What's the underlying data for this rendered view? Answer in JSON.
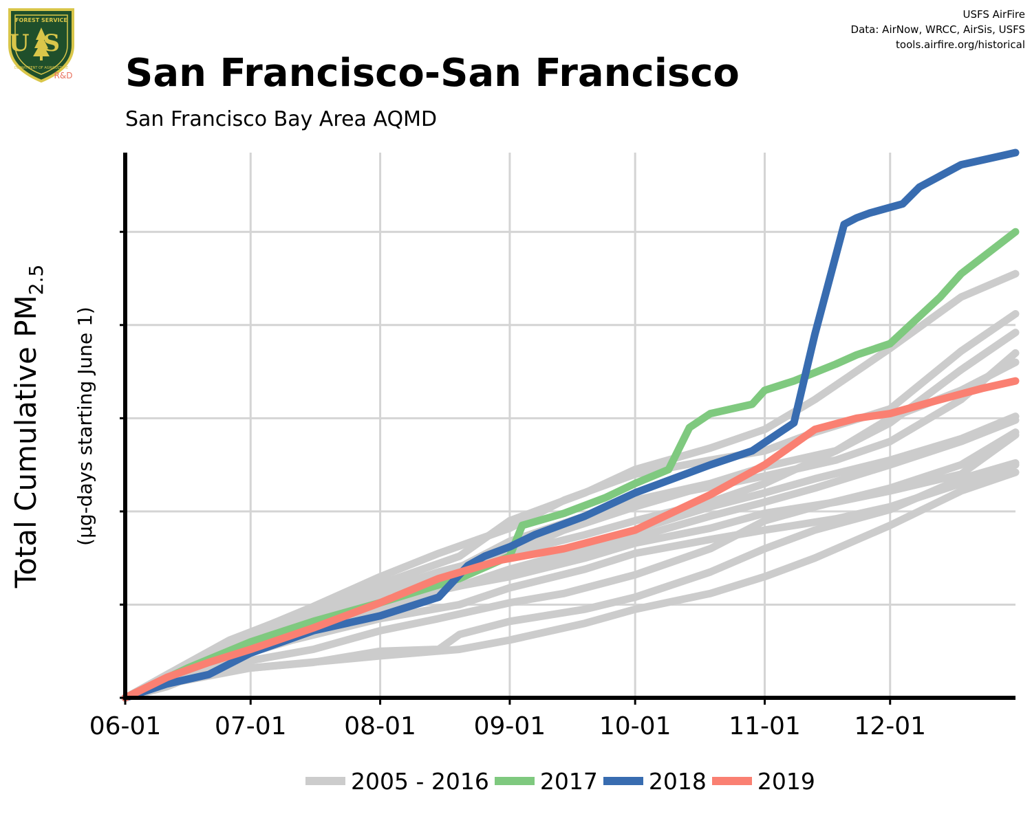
{
  "header": {
    "title": "San Francisco-San Francisco",
    "subtitle": "San Francisco Bay Area AQMD",
    "credits": [
      "USFS AirFire",
      "Data: AirNow, WRCC, AirSis, USFS",
      "tools.airfire.org/historical"
    ]
  },
  "logo": {
    "top_text": "FOREST SERVICE",
    "letters": "US",
    "bottom_text": "DEPARTMENT OF AGRICULTURE",
    "badge": "R&D",
    "colors": {
      "shield": "#1f4f2b",
      "trim": "#d9c64a",
      "badge": "#e8735f"
    }
  },
  "chart_data": {
    "type": "line",
    "ylabel_main": "Total Cumulative PM",
    "ylabel_sub": "2.5",
    "ylabel_units": "(µg-days starting June 1)",
    "x_ticks": [
      "06-01",
      "07-01",
      "08-01",
      "09-01",
      "10-01",
      "11-01",
      "12-01"
    ],
    "x_tick_days": [
      0,
      30,
      61,
      92,
      122,
      153,
      183
    ],
    "xlim": [
      0,
      213
    ],
    "ylim": [
      0,
      5.85
    ],
    "y_ticks": [
      0,
      1,
      2,
      3,
      4,
      5
    ],
    "y_tick_labels": [
      "",
      "",
      "",
      "",
      "",
      ""
    ],
    "grid": true,
    "legend_position": "bottom",
    "legend": [
      {
        "label": "2005 - 2016",
        "color": "#cccccc"
      },
      {
        "label": "2017",
        "color": "#7fc97f"
      },
      {
        "label": "2018",
        "color": "#386cb0"
      },
      {
        "label": "2019",
        "color": "#fa8072"
      }
    ],
    "series": [
      {
        "name": "2005 - 2016",
        "color": "#cccccc",
        "x": [
          0,
          10,
          25,
          40,
          61,
          80,
          92,
          110,
          122,
          140,
          153,
          165,
          183,
          200,
          213
        ],
        "y": [
          0,
          0.25,
          0.62,
          0.88,
          1.22,
          1.52,
          1.9,
          2.2,
          2.45,
          2.68,
          2.88,
          3.2,
          3.75,
          4.3,
          4.55
        ]
      },
      {
        "name": "2005 - 2016",
        "color": "#cccccc",
        "x": [
          0,
          15,
          30,
          45,
          61,
          75,
          92,
          105,
          122,
          140,
          153,
          165,
          183,
          200,
          213
        ],
        "y": [
          0,
          0.3,
          0.7,
          0.98,
          1.3,
          1.55,
          1.82,
          2.12,
          2.4,
          2.55,
          2.65,
          2.85,
          3.1,
          3.72,
          4.12
        ]
      },
      {
        "name": "2005 - 2016",
        "color": "#cccccc",
        "x": [
          0,
          10,
          25,
          40,
          61,
          80,
          92,
          110,
          122,
          140,
          153,
          170,
          183,
          200,
          213
        ],
        "y": [
          0,
          0.2,
          0.52,
          0.82,
          1.12,
          1.4,
          1.68,
          1.95,
          2.12,
          2.3,
          2.48,
          2.65,
          2.95,
          3.52,
          3.92
        ]
      },
      {
        "name": "2005 - 2016",
        "color": "#cccccc",
        "x": [
          0,
          15,
          30,
          50,
          61,
          75,
          92,
          105,
          122,
          135,
          153,
          170,
          183,
          200,
          213
        ],
        "y": [
          0,
          0.32,
          0.66,
          0.95,
          1.15,
          1.35,
          1.55,
          1.8,
          2.05,
          2.22,
          2.38,
          2.55,
          2.75,
          3.2,
          3.7
        ]
      },
      {
        "name": "2005 - 2016",
        "color": "#cccccc",
        "x": [
          0,
          10,
          25,
          40,
          61,
          75,
          92,
          110,
          122,
          140,
          153,
          170,
          183,
          200,
          213
        ],
        "y": [
          0,
          0.22,
          0.58,
          0.85,
          1.12,
          1.32,
          1.55,
          1.75,
          1.9,
          2.1,
          2.3,
          2.65,
          3.0,
          3.3,
          3.6
        ]
      },
      {
        "name": "2005 - 2016",
        "color": "#cccccc",
        "x": [
          0,
          15,
          30,
          45,
          61,
          80,
          92,
          110,
          122,
          140,
          153,
          165,
          183,
          200,
          213
        ],
        "y": [
          0,
          0.26,
          0.62,
          0.86,
          1.05,
          1.2,
          1.38,
          1.6,
          1.8,
          2.05,
          2.2,
          2.35,
          2.55,
          2.78,
          3.02
        ]
      },
      {
        "name": "2005 - 2016",
        "color": "#cccccc",
        "x": [
          0,
          10,
          25,
          40,
          61,
          75,
          92,
          105,
          122,
          140,
          153,
          165,
          183,
          200,
          213
        ],
        "y": [
          0,
          0.18,
          0.45,
          0.72,
          0.95,
          1.15,
          1.32,
          1.52,
          1.72,
          1.95,
          2.1,
          2.25,
          2.5,
          2.75,
          2.98
        ]
      },
      {
        "name": "2005 - 2016",
        "color": "#cccccc",
        "x": [
          0,
          15,
          30,
          45,
          61,
          75,
          92,
          110,
          122,
          140,
          153,
          170,
          183,
          200,
          213
        ],
        "y": [
          0,
          0.3,
          0.62,
          0.85,
          1.02,
          1.16,
          1.3,
          1.5,
          1.66,
          1.82,
          1.98,
          2.1,
          2.22,
          2.4,
          2.82
        ]
      },
      {
        "name": "2005 - 2016",
        "color": "#cccccc",
        "x": [
          0,
          10,
          25,
          40,
          61,
          80,
          92,
          110,
          122,
          140,
          153,
          170,
          183,
          200,
          213
        ],
        "y": [
          0,
          0.18,
          0.42,
          0.62,
          0.85,
          1.0,
          1.18,
          1.38,
          1.55,
          1.7,
          1.8,
          1.92,
          2.05,
          2.3,
          2.5
        ]
      },
      {
        "name": "2005 - 2016",
        "color": "#cccccc",
        "x": [
          0,
          15,
          30,
          45,
          61,
          75,
          92,
          105,
          122,
          140,
          153,
          165,
          183,
          200,
          213
        ],
        "y": [
          0,
          0.24,
          0.4,
          0.52,
          0.72,
          0.85,
          1.02,
          1.12,
          1.32,
          1.6,
          1.9,
          2.05,
          2.25,
          2.5,
          2.85
        ]
      },
      {
        "name": "2005 - 2016",
        "color": "#cccccc",
        "x": [
          0,
          10,
          30,
          45,
          61,
          75,
          80,
          92,
          110,
          122,
          140,
          153,
          165,
          183,
          200,
          213
        ],
        "y": [
          0,
          0.15,
          0.32,
          0.38,
          0.5,
          0.52,
          0.68,
          0.82,
          0.95,
          1.08,
          1.35,
          1.6,
          1.8,
          2.02,
          2.35,
          2.52
        ]
      },
      {
        "name": "2005 - 2016",
        "color": "#cccccc",
        "x": [
          0,
          10,
          20,
          30,
          61,
          80,
          92,
          110,
          122,
          140,
          153,
          165,
          183,
          200,
          213
        ],
        "y": [
          0,
          0.12,
          0.3,
          0.32,
          0.45,
          0.52,
          0.62,
          0.8,
          0.95,
          1.12,
          1.3,
          1.5,
          1.85,
          2.22,
          2.42
        ]
      },
      {
        "name": "2017",
        "color": "#7fc97f",
        "x": [
          0,
          15,
          30,
          45,
          61,
          80,
          92,
          95,
          105,
          115,
          122,
          130,
          135,
          140,
          150,
          153,
          160,
          170,
          175,
          183,
          195,
          200,
          213
        ],
        "y": [
          0,
          0.32,
          0.6,
          0.82,
          1.02,
          1.28,
          1.52,
          1.85,
          1.98,
          2.15,
          2.3,
          2.45,
          2.9,
          3.05,
          3.15,
          3.3,
          3.4,
          3.58,
          3.68,
          3.8,
          4.3,
          4.55,
          5.0
        ]
      },
      {
        "name": "2018",
        "color": "#386cb0",
        "x": [
          0,
          10,
          20,
          30,
          45,
          61,
          75,
          82,
          86,
          92,
          98,
          110,
          122,
          140,
          150,
          160,
          165,
          172,
          175,
          178,
          182,
          186,
          190,
          195,
          200,
          210,
          213
        ],
        "y": [
          0,
          0.15,
          0.25,
          0.48,
          0.72,
          0.88,
          1.08,
          1.42,
          1.52,
          1.62,
          1.75,
          1.95,
          2.2,
          2.5,
          2.65,
          2.95,
          3.9,
          5.08,
          5.15,
          5.2,
          5.25,
          5.3,
          5.48,
          5.6,
          5.72,
          5.82,
          5.85
        ]
      },
      {
        "name": "2019",
        "color": "#fa8072",
        "x": [
          0,
          10,
          20,
          30,
          45,
          61,
          75,
          90,
          105,
          122,
          140,
          153,
          165,
          175,
          183,
          195,
          205,
          213
        ],
        "y": [
          0,
          0.22,
          0.38,
          0.52,
          0.75,
          1.02,
          1.28,
          1.48,
          1.6,
          1.8,
          2.18,
          2.5,
          2.88,
          3.0,
          3.05,
          3.2,
          3.32,
          3.4
        ]
      }
    ]
  }
}
